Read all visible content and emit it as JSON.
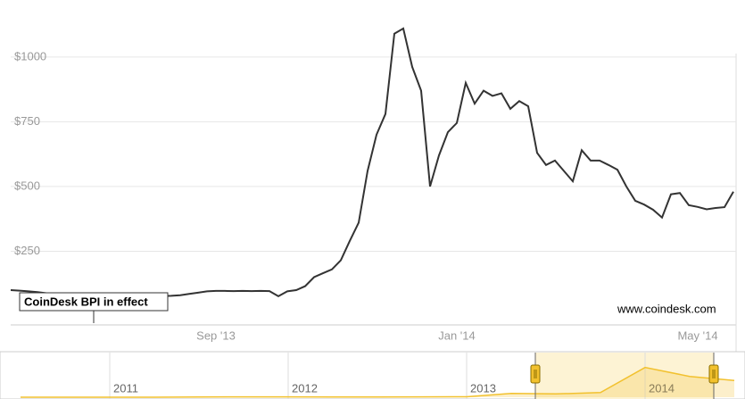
{
  "chart_data": [
    {
      "type": "line",
      "categories": [
        null,
        null,
        null,
        null,
        null,
        null,
        null,
        null,
        null,
        null,
        null,
        null,
        null,
        null,
        null,
        null,
        null,
        null,
        null,
        null,
        null,
        null,
        null,
        "Sep '13",
        null,
        null,
        null,
        null,
        null,
        null,
        null,
        null,
        null,
        null,
        null,
        null,
        null,
        null,
        null,
        null,
        null,
        null,
        null,
        null,
        null,
        null,
        null,
        null,
        null,
        null,
        "Jan '14",
        null,
        null,
        null,
        null,
        null,
        null,
        null,
        null,
        null,
        null,
        null,
        null,
        null,
        null,
        null,
        null,
        null,
        null,
        null,
        null,
        null,
        null,
        null,
        null,
        null,
        null,
        "May '14",
        null,
        null,
        null,
        null
      ],
      "series": [
        {
          "color": "#333333",
          "values": [
            100,
            98,
            95,
            92,
            88,
            85,
            82,
            78,
            75,
            72,
            70,
            70,
            71,
            72,
            73,
            74,
            75,
            77,
            78,
            80,
            85,
            90,
            95,
            97,
            97,
            96,
            97,
            96,
            97,
            96,
            76,
            95,
            100,
            115,
            150,
            165,
            180,
            215,
            290,
            360,
            560,
            700,
            780,
            1090,
            1110,
            962,
            870,
            500,
            620,
            710,
            745,
            900,
            820,
            870,
            850,
            860,
            800,
            830,
            810,
            630,
            583,
            600,
            560,
            520,
            640,
            600,
            600,
            583,
            565,
            500,
            445,
            430,
            410,
            380,
            470,
            475,
            428,
            421,
            412,
            417,
            420,
            480
          ]
        }
      ],
      "ylim": [
        0,
        1220
      ],
      "yticks": [
        {
          "value": 250,
          "label": "$250"
        },
        {
          "value": 500,
          "label": "$500"
        },
        {
          "value": 750,
          "label": "$750"
        },
        {
          "value": 1000,
          "label": "$1000"
        }
      ],
      "grid": true,
      "annotations": [
        "CoinDesk BPI in effect",
        "www.coindesk.com"
      ]
    },
    {
      "type": "area",
      "categories": [
        null,
        null,
        "2011",
        null,
        null,
        null,
        "2012",
        null,
        null,
        null,
        "2013",
        null,
        null,
        null,
        "2014",
        null,
        null
      ],
      "series": [
        {
          "color": "#f2c12e",
          "values": [
            0,
            0,
            0,
            0,
            5,
            10,
            10,
            5,
            5,
            10,
            13,
            100,
            90,
            125,
            800,
            560,
            450
          ]
        }
      ],
      "ylim": [
        0,
        1200
      ]
    }
  ]
}
